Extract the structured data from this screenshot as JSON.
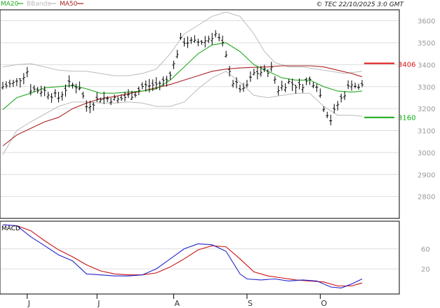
{
  "copyright": "© TEC 22/10/2025 3:0 GMT",
  "chart_data": [
    {
      "type": "line",
      "panel": "price",
      "title": "",
      "legend": [
        {
          "name": "MA20",
          "color": "#22aa22"
        },
        {
          "name": "BBands",
          "color": "#bbbbbb"
        },
        {
          "name": "MA50",
          "color": "#aa2222"
        }
      ],
      "ylim": [
        2700,
        3650
      ],
      "y_ticks": [
        2800,
        2900,
        3000,
        3100,
        3200,
        3300,
        3400,
        3500,
        3600
      ],
      "y_tick_labels": [
        "2800",
        "2900",
        "3000",
        "3100",
        "3200",
        "3300",
        "3400",
        "3500",
        "3600"
      ],
      "x_index_range": [
        0,
        112
      ],
      "x_month_ticks": [
        {
          "index": 7,
          "label": "J"
        },
        {
          "index": 27,
          "label": "J"
        },
        {
          "index": 49,
          "label": "A"
        },
        {
          "index": 70,
          "label": "S"
        },
        {
          "index": 91,
          "label": "O"
        }
      ],
      "grid": true,
      "resistance": {
        "value": 3406,
        "label": "3406",
        "color": "#dd1111"
      },
      "support": {
        "value": 3160,
        "label": "3160",
        "color": "#11aa11"
      },
      "ohlc_anchors": [
        [
          0,
          3300
        ],
        [
          4,
          3320
        ],
        [
          7,
          3370
        ],
        [
          8,
          3290
        ],
        [
          12,
          3280
        ],
        [
          16,
          3250
        ],
        [
          19,
          3310
        ],
        [
          22,
          3300
        ],
        [
          24,
          3210
        ],
        [
          28,
          3250
        ],
        [
          33,
          3240
        ],
        [
          38,
          3270
        ],
        [
          40,
          3300
        ],
        [
          44,
          3310
        ],
        [
          47,
          3330
        ],
        [
          49,
          3400
        ],
        [
          51,
          3510
        ],
        [
          55,
          3500
        ],
        [
          58,
          3510
        ],
        [
          61,
          3540
        ],
        [
          63,
          3490
        ],
        [
          65,
          3380
        ],
        [
          66,
          3320
        ],
        [
          69,
          3280
        ],
        [
          72,
          3360
        ],
        [
          75,
          3370
        ],
        [
          77,
          3380
        ],
        [
          79,
          3290
        ],
        [
          82,
          3320
        ],
        [
          85,
          3300
        ],
        [
          88,
          3330
        ],
        [
          90,
          3310
        ],
        [
          92,
          3210
        ],
        [
          94,
          3150
        ],
        [
          96,
          3220
        ],
        [
          98,
          3270
        ],
        [
          100,
          3320
        ],
        [
          102,
          3290
        ],
        [
          103,
          3310
        ]
      ],
      "ma20": [
        [
          0,
          3195
        ],
        [
          4,
          3250
        ],
        [
          8,
          3270
        ],
        [
          12,
          3295
        ],
        [
          16,
          3300
        ],
        [
          20,
          3305
        ],
        [
          24,
          3290
        ],
        [
          28,
          3270
        ],
        [
          32,
          3270
        ],
        [
          36,
          3275
        ],
        [
          40,
          3280
        ],
        [
          44,
          3290
        ],
        [
          48,
          3330
        ],
        [
          52,
          3390
        ],
        [
          56,
          3450
        ],
        [
          60,
          3490
        ],
        [
          64,
          3500
        ],
        [
          68,
          3460
        ],
        [
          72,
          3400
        ],
        [
          76,
          3370
        ],
        [
          80,
          3340
        ],
        [
          84,
          3330
        ],
        [
          88,
          3330
        ],
        [
          92,
          3300
        ],
        [
          96,
          3280
        ],
        [
          100,
          3275
        ],
        [
          103,
          3280
        ]
      ],
      "ma50": [
        [
          0,
          3030
        ],
        [
          4,
          3080
        ],
        [
          8,
          3110
        ],
        [
          12,
          3140
        ],
        [
          16,
          3160
        ],
        [
          20,
          3200
        ],
        [
          24,
          3225
        ],
        [
          28,
          3245
        ],
        [
          32,
          3255
        ],
        [
          36,
          3268
        ],
        [
          40,
          3280
        ],
        [
          44,
          3295
        ],
        [
          48,
          3310
        ],
        [
          52,
          3330
        ],
        [
          56,
          3350
        ],
        [
          60,
          3370
        ],
        [
          64,
          3380
        ],
        [
          68,
          3385
        ],
        [
          72,
          3388
        ],
        [
          76,
          3390
        ],
        [
          80,
          3395
        ],
        [
          84,
          3395
        ],
        [
          88,
          3395
        ],
        [
          92,
          3390
        ],
        [
          96,
          3375
        ],
        [
          100,
          3360
        ],
        [
          103,
          3345
        ]
      ],
      "bbands_upper": [
        [
          0,
          3390
        ],
        [
          4,
          3400
        ],
        [
          8,
          3405
        ],
        [
          12,
          3390
        ],
        [
          16,
          3375
        ],
        [
          20,
          3370
        ],
        [
          24,
          3370
        ],
        [
          28,
          3360
        ],
        [
          32,
          3350
        ],
        [
          36,
          3350
        ],
        [
          40,
          3360
        ],
        [
          44,
          3380
        ],
        [
          48,
          3450
        ],
        [
          52,
          3540
        ],
        [
          56,
          3580
        ],
        [
          60,
          3620
        ],
        [
          64,
          3640
        ],
        [
          68,
          3620
        ],
        [
          72,
          3540
        ],
        [
          75,
          3460
        ],
        [
          78,
          3410
        ],
        [
          82,
          3390
        ],
        [
          86,
          3390
        ],
        [
          90,
          3380
        ],
        [
          94,
          3370
        ],
        [
          98,
          3360
        ],
        [
          103,
          3370
        ]
      ],
      "bbands_lower": [
        [
          0,
          2990
        ],
        [
          4,
          3100
        ],
        [
          8,
          3140
        ],
        [
          12,
          3175
        ],
        [
          16,
          3210
        ],
        [
          20,
          3230
        ],
        [
          24,
          3230
        ],
        [
          28,
          3225
        ],
        [
          32,
          3225
        ],
        [
          36,
          3230
        ],
        [
          40,
          3225
        ],
        [
          44,
          3210
        ],
        [
          48,
          3210
        ],
        [
          52,
          3230
        ],
        [
          56,
          3290
        ],
        [
          60,
          3340
        ],
        [
          64,
          3370
        ],
        [
          68,
          3320
        ],
        [
          72,
          3260
        ],
        [
          76,
          3250
        ],
        [
          80,
          3260
        ],
        [
          84,
          3270
        ],
        [
          88,
          3270
        ],
        [
          92,
          3210
        ],
        [
          96,
          3170
        ],
        [
          100,
          3170
        ],
        [
          103,
          3165
        ]
      ]
    },
    {
      "type": "line",
      "panel": "macd",
      "title": "MACD",
      "ylim": [
        -30,
        115
      ],
      "y_ticks": [
        20,
        60
      ],
      "y_tick_labels": [
        "20",
        "60"
      ],
      "x_index_range": [
        0,
        112
      ],
      "grid": true,
      "series": [
        {
          "name": "",
          "color": "#2222cc",
          "points": [
            [
              0,
              108
            ],
            [
              4,
              106
            ],
            [
              8,
              84
            ],
            [
              12,
              66
            ],
            [
              16,
              48
            ],
            [
              20,
              36
            ],
            [
              24,
              10
            ],
            [
              28,
              8
            ],
            [
              32,
              6
            ],
            [
              36,
              6
            ],
            [
              40,
              8
            ],
            [
              44,
              20
            ],
            [
              48,
              40
            ],
            [
              52,
              60
            ],
            [
              56,
              70
            ],
            [
              60,
              68
            ],
            [
              64,
              55
            ],
            [
              68,
              10
            ],
            [
              70,
              0
            ],
            [
              74,
              -2
            ],
            [
              78,
              0
            ],
            [
              82,
              -4
            ],
            [
              86,
              -2
            ],
            [
              90,
              -4
            ],
            [
              94,
              -16
            ],
            [
              97,
              -18
            ],
            [
              100,
              -10
            ],
            [
              103,
              0
            ]
          ]
        },
        {
          "name": "",
          "color": "#cc1111",
          "points": [
            [
              0,
              108
            ],
            [
              4,
              106
            ],
            [
              8,
              96
            ],
            [
              12,
              76
            ],
            [
              16,
              58
            ],
            [
              20,
              44
            ],
            [
              24,
              28
            ],
            [
              28,
              16
            ],
            [
              32,
              10
            ],
            [
              36,
              8
            ],
            [
              40,
              8
            ],
            [
              44,
              12
            ],
            [
              48,
              24
            ],
            [
              52,
              40
            ],
            [
              56,
              58
            ],
            [
              60,
              66
            ],
            [
              64,
              64
            ],
            [
              68,
              40
            ],
            [
              72,
              14
            ],
            [
              76,
              6
            ],
            [
              80,
              2
            ],
            [
              84,
              -2
            ],
            [
              88,
              -4
            ],
            [
              92,
              -6
            ],
            [
              96,
              -14
            ],
            [
              100,
              -14
            ],
            [
              103,
              -8
            ]
          ]
        }
      ]
    }
  ]
}
